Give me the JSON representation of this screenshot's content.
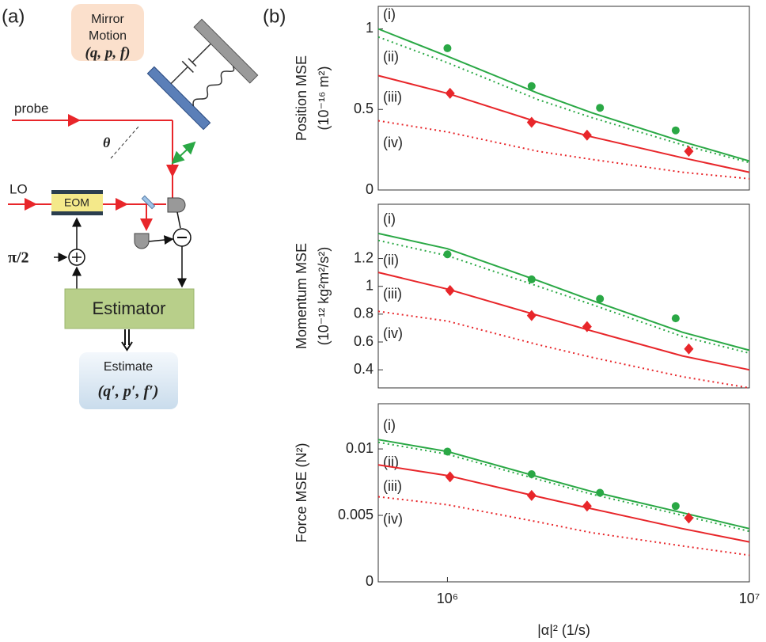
{
  "panel_a": {
    "label": "(a)",
    "mirror_motion": [
      "Mirror",
      "Motion",
      "(q, p, f)"
    ],
    "probe": "probe",
    "angle": "θ",
    "lo": "LO",
    "eom": "EOM",
    "phase": "π/2",
    "estimator": "Estimator",
    "estimate": [
      "Estimate",
      "(q′, p′, f′)"
    ]
  },
  "panel_b_label": "(b)",
  "chart_data": [
    {
      "type": "line",
      "xlog": true,
      "xlim": [
        590000,
        10000000
      ],
      "ylim": [
        0,
        1.14
      ],
      "yticks": [
        0,
        0.5,
        1
      ],
      "ylabel": [
        "Position MSE",
        "(10⁻¹⁶ m²)"
      ],
      "series": [
        {
          "name": "(i)",
          "color": "#2aa845",
          "style": "solid",
          "x": [
            590000,
            1000000,
            2000000,
            3000000,
            6000000,
            10000000
          ],
          "values": [
            1.0,
            0.83,
            0.6,
            0.48,
            0.3,
            0.18
          ]
        },
        {
          "name": "(ii)",
          "color": "#2aa845",
          "style": "dotted",
          "x": [
            590000,
            1000000,
            2000000,
            3000000,
            6000000,
            10000000
          ],
          "values": [
            0.95,
            0.79,
            0.56,
            0.45,
            0.28,
            0.17
          ]
        },
        {
          "name": "(iii)",
          "color": "#e8262a",
          "style": "solid",
          "x": [
            590000,
            1000000,
            2000000,
            3000000,
            6000000,
            10000000
          ],
          "values": [
            0.71,
            0.6,
            0.42,
            0.33,
            0.2,
            0.11
          ]
        },
        {
          "name": "(iv)",
          "color": "#e8262a",
          "style": "dotted",
          "x": [
            590000,
            1000000,
            2000000,
            3000000,
            6000000,
            10000000
          ],
          "values": [
            0.43,
            0.36,
            0.24,
            0.19,
            0.11,
            0.07
          ]
        },
        {
          "type": "scatter",
          "marker": "circle",
          "color": "#2aa845",
          "x": [
            1000000,
            1900000,
            3200000,
            5700000
          ],
          "values": [
            0.88,
            0.645,
            0.51,
            0.37
          ]
        },
        {
          "type": "scatter",
          "marker": "diamond",
          "color": "#e8262a",
          "x": [
            1020000,
            1900000,
            2900000,
            6300000
          ],
          "values": [
            0.6,
            0.42,
            0.34,
            0.24
          ]
        }
      ]
    },
    {
      "type": "line",
      "xlog": true,
      "xlim": [
        590000,
        10000000
      ],
      "ylim": [
        0.27,
        1.59
      ],
      "yticks": [
        0.4,
        0.6,
        0.8,
        1,
        1.2
      ],
      "ylabel": [
        "Momentum MSE",
        "(10⁻¹² kg²m²/s²)"
      ],
      "series": [
        {
          "name": "(i)",
          "color": "#2aa845",
          "style": "solid",
          "x": [
            590000,
            1000000,
            2000000,
            3000000,
            6000000,
            10000000
          ],
          "values": [
            1.38,
            1.27,
            1.04,
            0.9,
            0.67,
            0.54
          ]
        },
        {
          "name": "(ii)",
          "color": "#2aa845",
          "style": "dotted",
          "x": [
            590000,
            1000000,
            2000000,
            3000000,
            6000000,
            10000000
          ],
          "values": [
            1.33,
            1.22,
            1.0,
            0.87,
            0.64,
            0.52
          ]
        },
        {
          "name": "(iii)",
          "color": "#e8262a",
          "style": "solid",
          "x": [
            590000,
            1000000,
            2000000,
            3000000,
            6000000,
            10000000
          ],
          "values": [
            1.1,
            0.98,
            0.79,
            0.68,
            0.5,
            0.4
          ]
        },
        {
          "name": "(iv)",
          "color": "#e8262a",
          "style": "dotted",
          "x": [
            590000,
            1000000,
            2000000,
            3000000,
            6000000,
            10000000
          ],
          "values": [
            0.82,
            0.75,
            0.58,
            0.49,
            0.35,
            0.27
          ]
        },
        {
          "type": "scatter",
          "marker": "circle",
          "color": "#2aa845",
          "x": [
            1000000,
            1900000,
            3200000,
            5700000
          ],
          "values": [
            1.23,
            1.05,
            0.91,
            0.77
          ]
        },
        {
          "type": "scatter",
          "marker": "diamond",
          "color": "#e8262a",
          "x": [
            1020000,
            1900000,
            2900000,
            6300000
          ],
          "values": [
            0.97,
            0.79,
            0.71,
            0.55
          ]
        }
      ]
    },
    {
      "type": "line",
      "xlog": true,
      "xlim": [
        590000,
        10000000
      ],
      "ylim": [
        0,
        0.0134
      ],
      "yticks": [
        0,
        0.005,
        0.01
      ],
      "xticks": [
        {
          "value": 1000000,
          "label": "10⁶"
        },
        {
          "value": 10000000,
          "label": "10⁷"
        }
      ],
      "ylabel": [
        "Force MSE (N²)"
      ],
      "xlabel": "|α|² (1/s)",
      "series": [
        {
          "name": "(i)",
          "color": "#2aa845",
          "style": "solid",
          "x": [
            590000,
            1000000,
            2000000,
            3000000,
            6000000,
            10000000
          ],
          "values": [
            0.0107,
            0.0098,
            0.0079,
            0.0068,
            0.0052,
            0.004
          ]
        },
        {
          "name": "(ii)",
          "color": "#2aa845",
          "style": "dotted",
          "x": [
            590000,
            1000000,
            2000000,
            3000000,
            6000000,
            10000000
          ],
          "values": [
            0.0105,
            0.0096,
            0.0077,
            0.0066,
            0.005,
            0.0038
          ]
        },
        {
          "name": "(iii)",
          "color": "#e8262a",
          "style": "solid",
          "x": [
            590000,
            1000000,
            2000000,
            3000000,
            6000000,
            10000000
          ],
          "values": [
            0.0088,
            0.008,
            0.0064,
            0.0055,
            0.004,
            0.003
          ]
        },
        {
          "name": "(iv)",
          "color": "#e8262a",
          "style": "dotted",
          "x": [
            590000,
            1000000,
            2000000,
            3000000,
            6000000,
            10000000
          ],
          "values": [
            0.0064,
            0.0058,
            0.0045,
            0.0037,
            0.0027,
            0.002
          ]
        },
        {
          "type": "scatter",
          "marker": "circle",
          "color": "#2aa845",
          "x": [
            1000000,
            1900000,
            3200000,
            5700000
          ],
          "values": [
            0.0098,
            0.0081,
            0.0067,
            0.0057
          ]
        },
        {
          "type": "scatter",
          "marker": "diamond",
          "color": "#e8262a",
          "x": [
            1020000,
            1900000,
            2900000,
            6300000
          ],
          "values": [
            0.0079,
            0.0065,
            0.0057,
            0.0048
          ]
        }
      ]
    }
  ]
}
